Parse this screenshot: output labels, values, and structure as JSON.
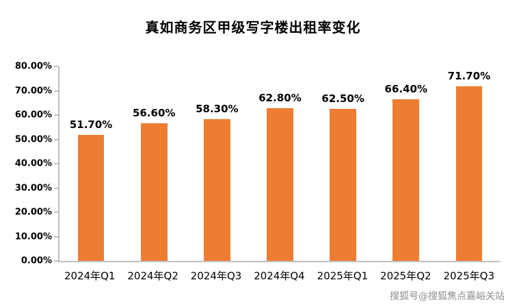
{
  "title": "真如商务区甲级写字楼出租率变化",
  "watermark": "搜狐号@搜狐焦点嘉峪关站",
  "chart_data": {
    "type": "bar",
    "title": "真如商务区甲级写字楼出租率变化",
    "categories": [
      "2024年Q1",
      "2024年Q2",
      "2024年Q3",
      "2024年Q4",
      "2025年Q1",
      "2025年Q2",
      "2025年Q3"
    ],
    "values": [
      51.7,
      56.6,
      58.3,
      62.8,
      62.5,
      66.4,
      71.7
    ],
    "value_labels": [
      "51.70%",
      "56.60%",
      "58.30%",
      "62.80%",
      "62.50%",
      "66.40%",
      "71.70%"
    ],
    "xlabel": "",
    "ylabel": "",
    "ylim": [
      0,
      80
    ],
    "ytick_values": [
      0,
      10,
      20,
      30,
      40,
      50,
      60,
      70,
      80
    ],
    "ytick_labels": [
      "0.00%",
      "10.00%",
      "20.00%",
      "30.00%",
      "40.00%",
      "50.00%",
      "60.00%",
      "70.00%",
      "80.00%"
    ],
    "bar_color": "#ED7D31",
    "axis_color": "#C0C0C0",
    "grid": false,
    "legend_position": "none"
  }
}
